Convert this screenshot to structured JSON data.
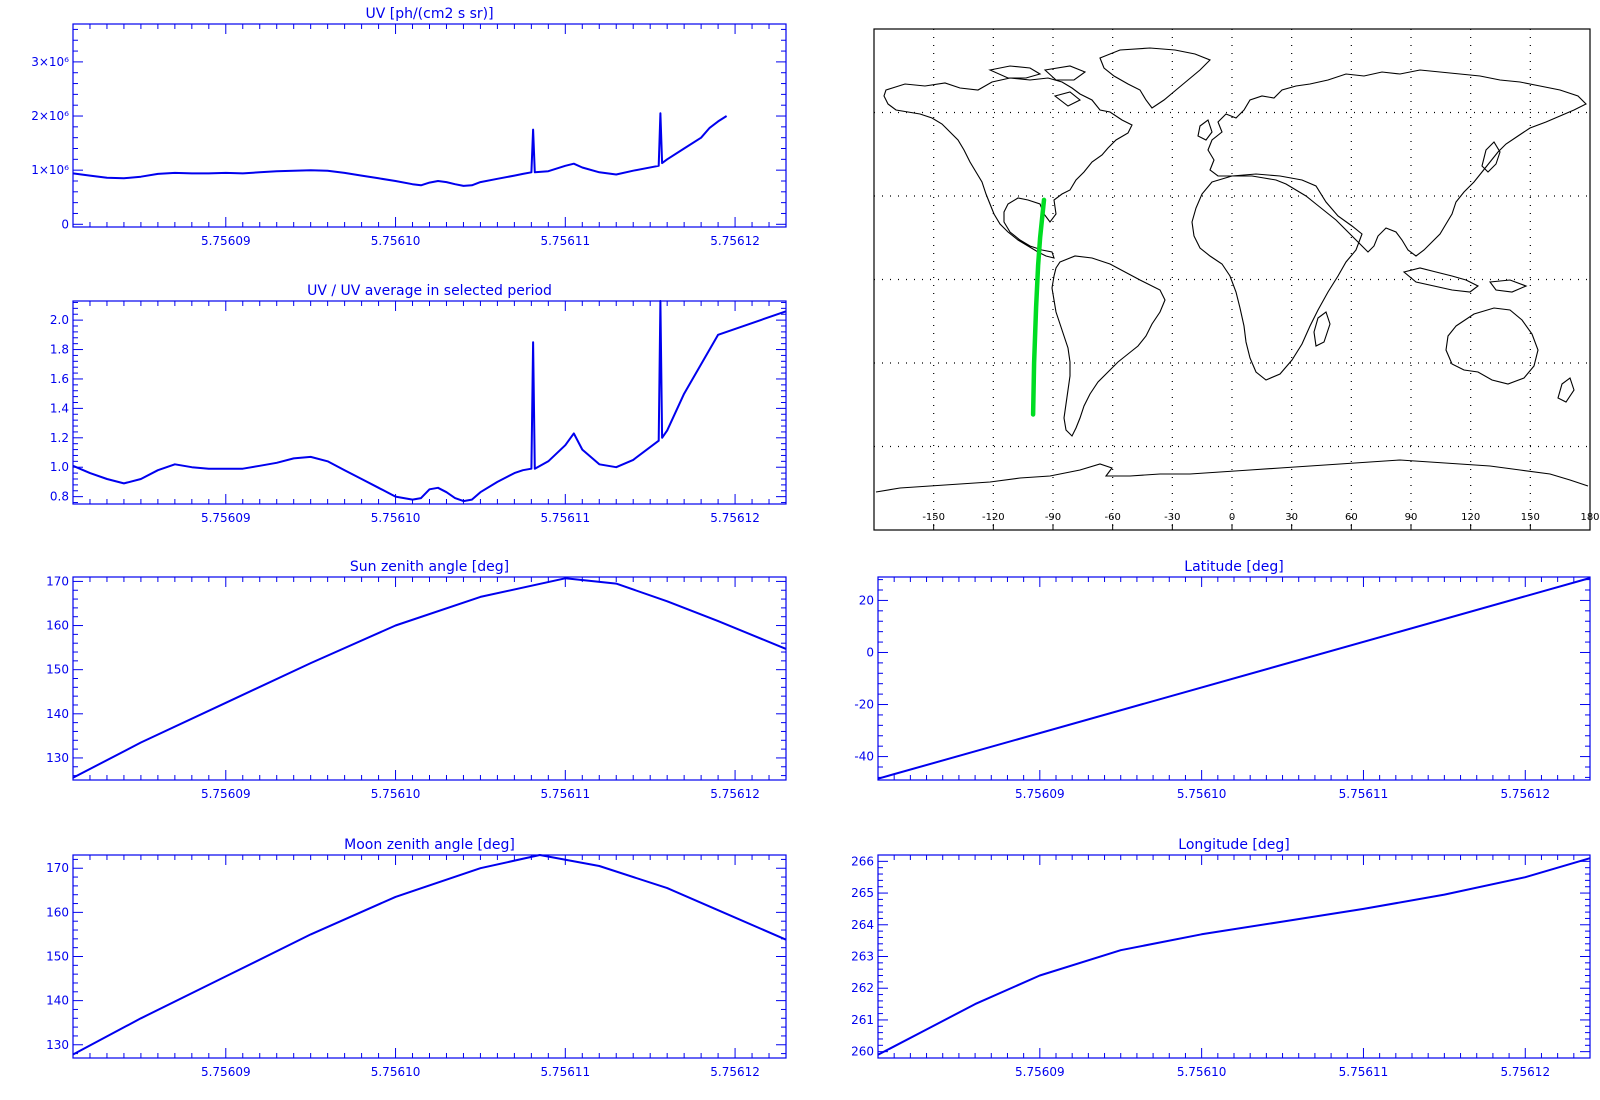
{
  "colors": {
    "plot": "#0000ee",
    "map_coast": "#000000",
    "track": "#00dd22",
    "grid": "#000000"
  },
  "chart_data": [
    {
      "id": "uv",
      "type": "line",
      "title": "UV [ph/(cm2 s sr)]",
      "xlim": [
        5.756081,
        5.756123
      ],
      "ylim": [
        -50000,
        3700000
      ],
      "x_ticks": [
        "5.75609",
        "5.75610",
        "5.75611",
        "5.75612"
      ],
      "x_tick_values": [
        5.75609,
        5.7561,
        5.75611,
        5.75612
      ],
      "y_ticks": [
        "0",
        "1×10⁶",
        "2×10⁶",
        "3×10⁶"
      ],
      "y_tick_values": [
        0,
        1000000,
        2000000,
        3000000
      ],
      "series": [
        {
          "points": [
            [
              5.756081,
              940000
            ],
            [
              5.756082,
              900000
            ],
            [
              5.756083,
              860000
            ],
            [
              5.756084,
              850000
            ],
            [
              5.756085,
              880000
            ],
            [
              5.756086,
              930000
            ],
            [
              5.756087,
              950000
            ],
            [
              5.756088,
              940000
            ],
            [
              5.756089,
              940000
            ],
            [
              5.75609,
              950000
            ],
            [
              5.756091,
              940000
            ],
            [
              5.756092,
              960000
            ],
            [
              5.756093,
              980000
            ],
            [
              5.756094,
              990000
            ],
            [
              5.756095,
              1000000
            ],
            [
              5.756096,
              990000
            ],
            [
              5.756097,
              950000
            ],
            [
              5.756098,
              900000
            ],
            [
              5.756099,
              850000
            ],
            [
              5.7561,
              800000
            ],
            [
              5.756101,
              740000
            ],
            [
              5.7561015,
              720000
            ],
            [
              5.756102,
              770000
            ],
            [
              5.7561025,
              800000
            ],
            [
              5.756103,
              780000
            ],
            [
              5.7561035,
              740000
            ],
            [
              5.756104,
              710000
            ],
            [
              5.7561045,
              720000
            ],
            [
              5.756105,
              780000
            ],
            [
              5.756106,
              840000
            ],
            [
              5.756107,
              900000
            ],
            [
              5.7561075,
              930000
            ],
            [
              5.756108,
              960000
            ],
            [
              5.7561081,
              1750000
            ],
            [
              5.7561082,
              960000
            ],
            [
              5.756109,
              980000
            ],
            [
              5.75611,
              1080000
            ],
            [
              5.7561105,
              1120000
            ],
            [
              5.756111,
              1050000
            ],
            [
              5.756112,
              960000
            ],
            [
              5.756113,
              920000
            ],
            [
              5.756114,
              990000
            ],
            [
              5.7561155,
              1080000
            ],
            [
              5.7561156,
              2050000
            ],
            [
              5.7561157,
              1130000
            ],
            [
              5.756116,
              1200000
            ],
            [
              5.756117,
              1400000
            ],
            [
              5.756118,
              1600000
            ],
            [
              5.7561185,
              1780000
            ],
            [
              5.756119,
              1900000
            ],
            [
              5.7561195,
              2000000
            ]
          ]
        }
      ]
    },
    {
      "id": "uv-ratio",
      "type": "line",
      "title": "UV / UV average in selected period",
      "xlim": [
        5.756081,
        5.756123
      ],
      "ylim": [
        0.75,
        2.13
      ],
      "x_ticks": [
        "5.75609",
        "5.75610",
        "5.75611",
        "5.75612"
      ],
      "x_tick_values": [
        5.75609,
        5.7561,
        5.75611,
        5.75612
      ],
      "y_ticks": [
        "0.8",
        "1.0",
        "1.2",
        "1.4",
        "1.6",
        "1.8",
        "2.0"
      ],
      "y_tick_values": [
        0.8,
        1.0,
        1.2,
        1.4,
        1.6,
        1.8,
        2.0
      ],
      "series": [
        {
          "points": [
            [
              5.756081,
              1.01
            ],
            [
              5.756082,
              0.96
            ],
            [
              5.756083,
              0.92
            ],
            [
              5.756084,
              0.89
            ],
            [
              5.756085,
              0.92
            ],
            [
              5.756086,
              0.98
            ],
            [
              5.756087,
              1.02
            ],
            [
              5.756088,
              1.0
            ],
            [
              5.756089,
              0.99
            ],
            [
              5.75609,
              0.99
            ],
            [
              5.756091,
              0.99
            ],
            [
              5.756092,
              1.01
            ],
            [
              5.756093,
              1.03
            ],
            [
              5.756094,
              1.06
            ],
            [
              5.756095,
              1.07
            ],
            [
              5.756096,
              1.04
            ],
            [
              5.756097,
              0.98
            ],
            [
              5.756098,
              0.92
            ],
            [
              5.756099,
              0.86
            ],
            [
              5.7561,
              0.8
            ],
            [
              5.756101,
              0.78
            ],
            [
              5.7561015,
              0.79
            ],
            [
              5.756102,
              0.85
            ],
            [
              5.7561025,
              0.86
            ],
            [
              5.756103,
              0.83
            ],
            [
              5.7561035,
              0.79
            ],
            [
              5.756104,
              0.77
            ],
            [
              5.7561045,
              0.78
            ],
            [
              5.756105,
              0.83
            ],
            [
              5.756106,
              0.9
            ],
            [
              5.756107,
              0.96
            ],
            [
              5.7561075,
              0.98
            ],
            [
              5.756108,
              0.99
            ],
            [
              5.7561081,
              1.85
            ],
            [
              5.7561082,
              0.99
            ],
            [
              5.756109,
              1.04
            ],
            [
              5.75611,
              1.15
            ],
            [
              5.7561105,
              1.23
            ],
            [
              5.756111,
              1.12
            ],
            [
              5.756112,
              1.02
            ],
            [
              5.756113,
              1.0
            ],
            [
              5.756114,
              1.05
            ],
            [
              5.7561155,
              1.18
            ],
            [
              5.7561156,
              2.13
            ],
            [
              5.7561157,
              1.2
            ],
            [
              5.756116,
              1.25
            ],
            [
              5.756117,
              1.5
            ],
            [
              5.756118,
              1.7
            ],
            [
              5.7561185,
              1.8
            ],
            [
              5.756119,
              1.9
            ],
            [
              5.756123,
              2.06
            ]
          ]
        }
      ]
    },
    {
      "id": "sun-zenith",
      "type": "line",
      "title": "Sun zenith angle [deg]",
      "xlim": [
        5.756081,
        5.756123
      ],
      "ylim": [
        125,
        171
      ],
      "x_ticks": [
        "5.75609",
        "5.75610",
        "5.75611",
        "5.75612"
      ],
      "x_tick_values": [
        5.75609,
        5.7561,
        5.75611,
        5.75612
      ],
      "y_ticks": [
        "130",
        "140",
        "150",
        "160",
        "170"
      ],
      "y_tick_values": [
        130,
        140,
        150,
        160,
        170
      ],
      "series": [
        {
          "points": [
            [
              5.756081,
              125.5
            ],
            [
              5.756085,
              133.5
            ],
            [
              5.75609,
              142.5
            ],
            [
              5.756095,
              151.5
            ],
            [
              5.7561,
              160.0
            ],
            [
              5.756105,
              166.5
            ],
            [
              5.75611,
              170.7
            ],
            [
              5.756113,
              169.5
            ],
            [
              5.756116,
              165.5
            ],
            [
              5.756119,
              161.0
            ],
            [
              5.756123,
              154.7
            ]
          ]
        }
      ]
    },
    {
      "id": "moon-zenith",
      "type": "line",
      "title": "Moon zenith angle [deg]",
      "xlim": [
        5.756081,
        5.756123
      ],
      "ylim": [
        127,
        173
      ],
      "x_ticks": [
        "5.75609",
        "5.75610",
        "5.75611",
        "5.75612"
      ],
      "x_tick_values": [
        5.75609,
        5.7561,
        5.75611,
        5.75612
      ],
      "y_ticks": [
        "130",
        "140",
        "150",
        "160",
        "170"
      ],
      "y_tick_values": [
        130,
        140,
        150,
        160,
        170
      ],
      "series": [
        {
          "points": [
            [
              5.756081,
              127.8
            ],
            [
              5.756085,
              136.0
            ],
            [
              5.75609,
              145.5
            ],
            [
              5.756095,
              155.0
            ],
            [
              5.7561,
              163.5
            ],
            [
              5.756105,
              170.0
            ],
            [
              5.7561085,
              173.0
            ],
            [
              5.756112,
              170.5
            ],
            [
              5.756116,
              165.5
            ],
            [
              5.756119,
              160.5
            ],
            [
              5.756123,
              153.8
            ]
          ]
        }
      ]
    },
    {
      "id": "latitude",
      "type": "line",
      "title": "Latitude [deg]",
      "xlim": [
        5.75608,
        5.756124
      ],
      "ylim": [
        -49,
        29
      ],
      "x_ticks": [
        "5.75609",
        "5.75610",
        "5.75611",
        "5.75612"
      ],
      "x_tick_values": [
        5.75609,
        5.7561,
        5.75611,
        5.75612
      ],
      "y_ticks": [
        "-40",
        "-20",
        "0",
        "20"
      ],
      "y_tick_values": [
        -40,
        -20,
        0,
        20
      ],
      "series": [
        {
          "points": [
            [
              5.75608,
              -48.5
            ],
            [
              5.756124,
              28.6
            ]
          ]
        }
      ]
    },
    {
      "id": "longitude",
      "type": "line",
      "title": "Longitude [deg]",
      "xlim": [
        5.75608,
        5.756124
      ],
      "ylim": [
        259.8,
        266.2
      ],
      "x_ticks": [
        "5.75609",
        "5.75610",
        "5.75611",
        "5.75612"
      ],
      "x_tick_values": [
        5.75609,
        5.7561,
        5.75611,
        5.75612
      ],
      "y_ticks": [
        "260",
        "261",
        "262",
        "263",
        "264",
        "265",
        "266"
      ],
      "y_tick_values": [
        260,
        261,
        262,
        263,
        264,
        265,
        266
      ],
      "series": [
        {
          "points": [
            [
              5.75608,
              259.9
            ],
            [
              5.756083,
              260.7
            ],
            [
              5.756086,
              261.5
            ],
            [
              5.75609,
              262.4
            ],
            [
              5.756095,
              263.2
            ],
            [
              5.7561,
              263.7
            ],
            [
              5.756105,
              264.1
            ],
            [
              5.75611,
              264.5
            ],
            [
              5.756115,
              264.95
            ],
            [
              5.75612,
              265.5
            ],
            [
              5.756124,
              266.1
            ]
          ]
        }
      ]
    }
  ],
  "map": {
    "lon_ticks": [
      "-150",
      "-120",
      "-90",
      "-60",
      "-30",
      "0",
      "30",
      "60",
      "90",
      "120",
      "150",
      "180"
    ],
    "lon_tick_values": [
      -150,
      -120,
      -90,
      -60,
      -30,
      0,
      30,
      60,
      90,
      120,
      150,
      180
    ],
    "lon_range": [
      -180,
      180
    ],
    "lat_range": [
      -90,
      90
    ],
    "track": [
      [
        -100.0,
        -48.5
      ],
      [
        -99.5,
        -30
      ],
      [
        -98.5,
        -10
      ],
      [
        -97.5,
        5
      ],
      [
        -96.5,
        15
      ],
      [
        -95.5,
        22
      ],
      [
        -94.5,
        28.6
      ]
    ]
  }
}
